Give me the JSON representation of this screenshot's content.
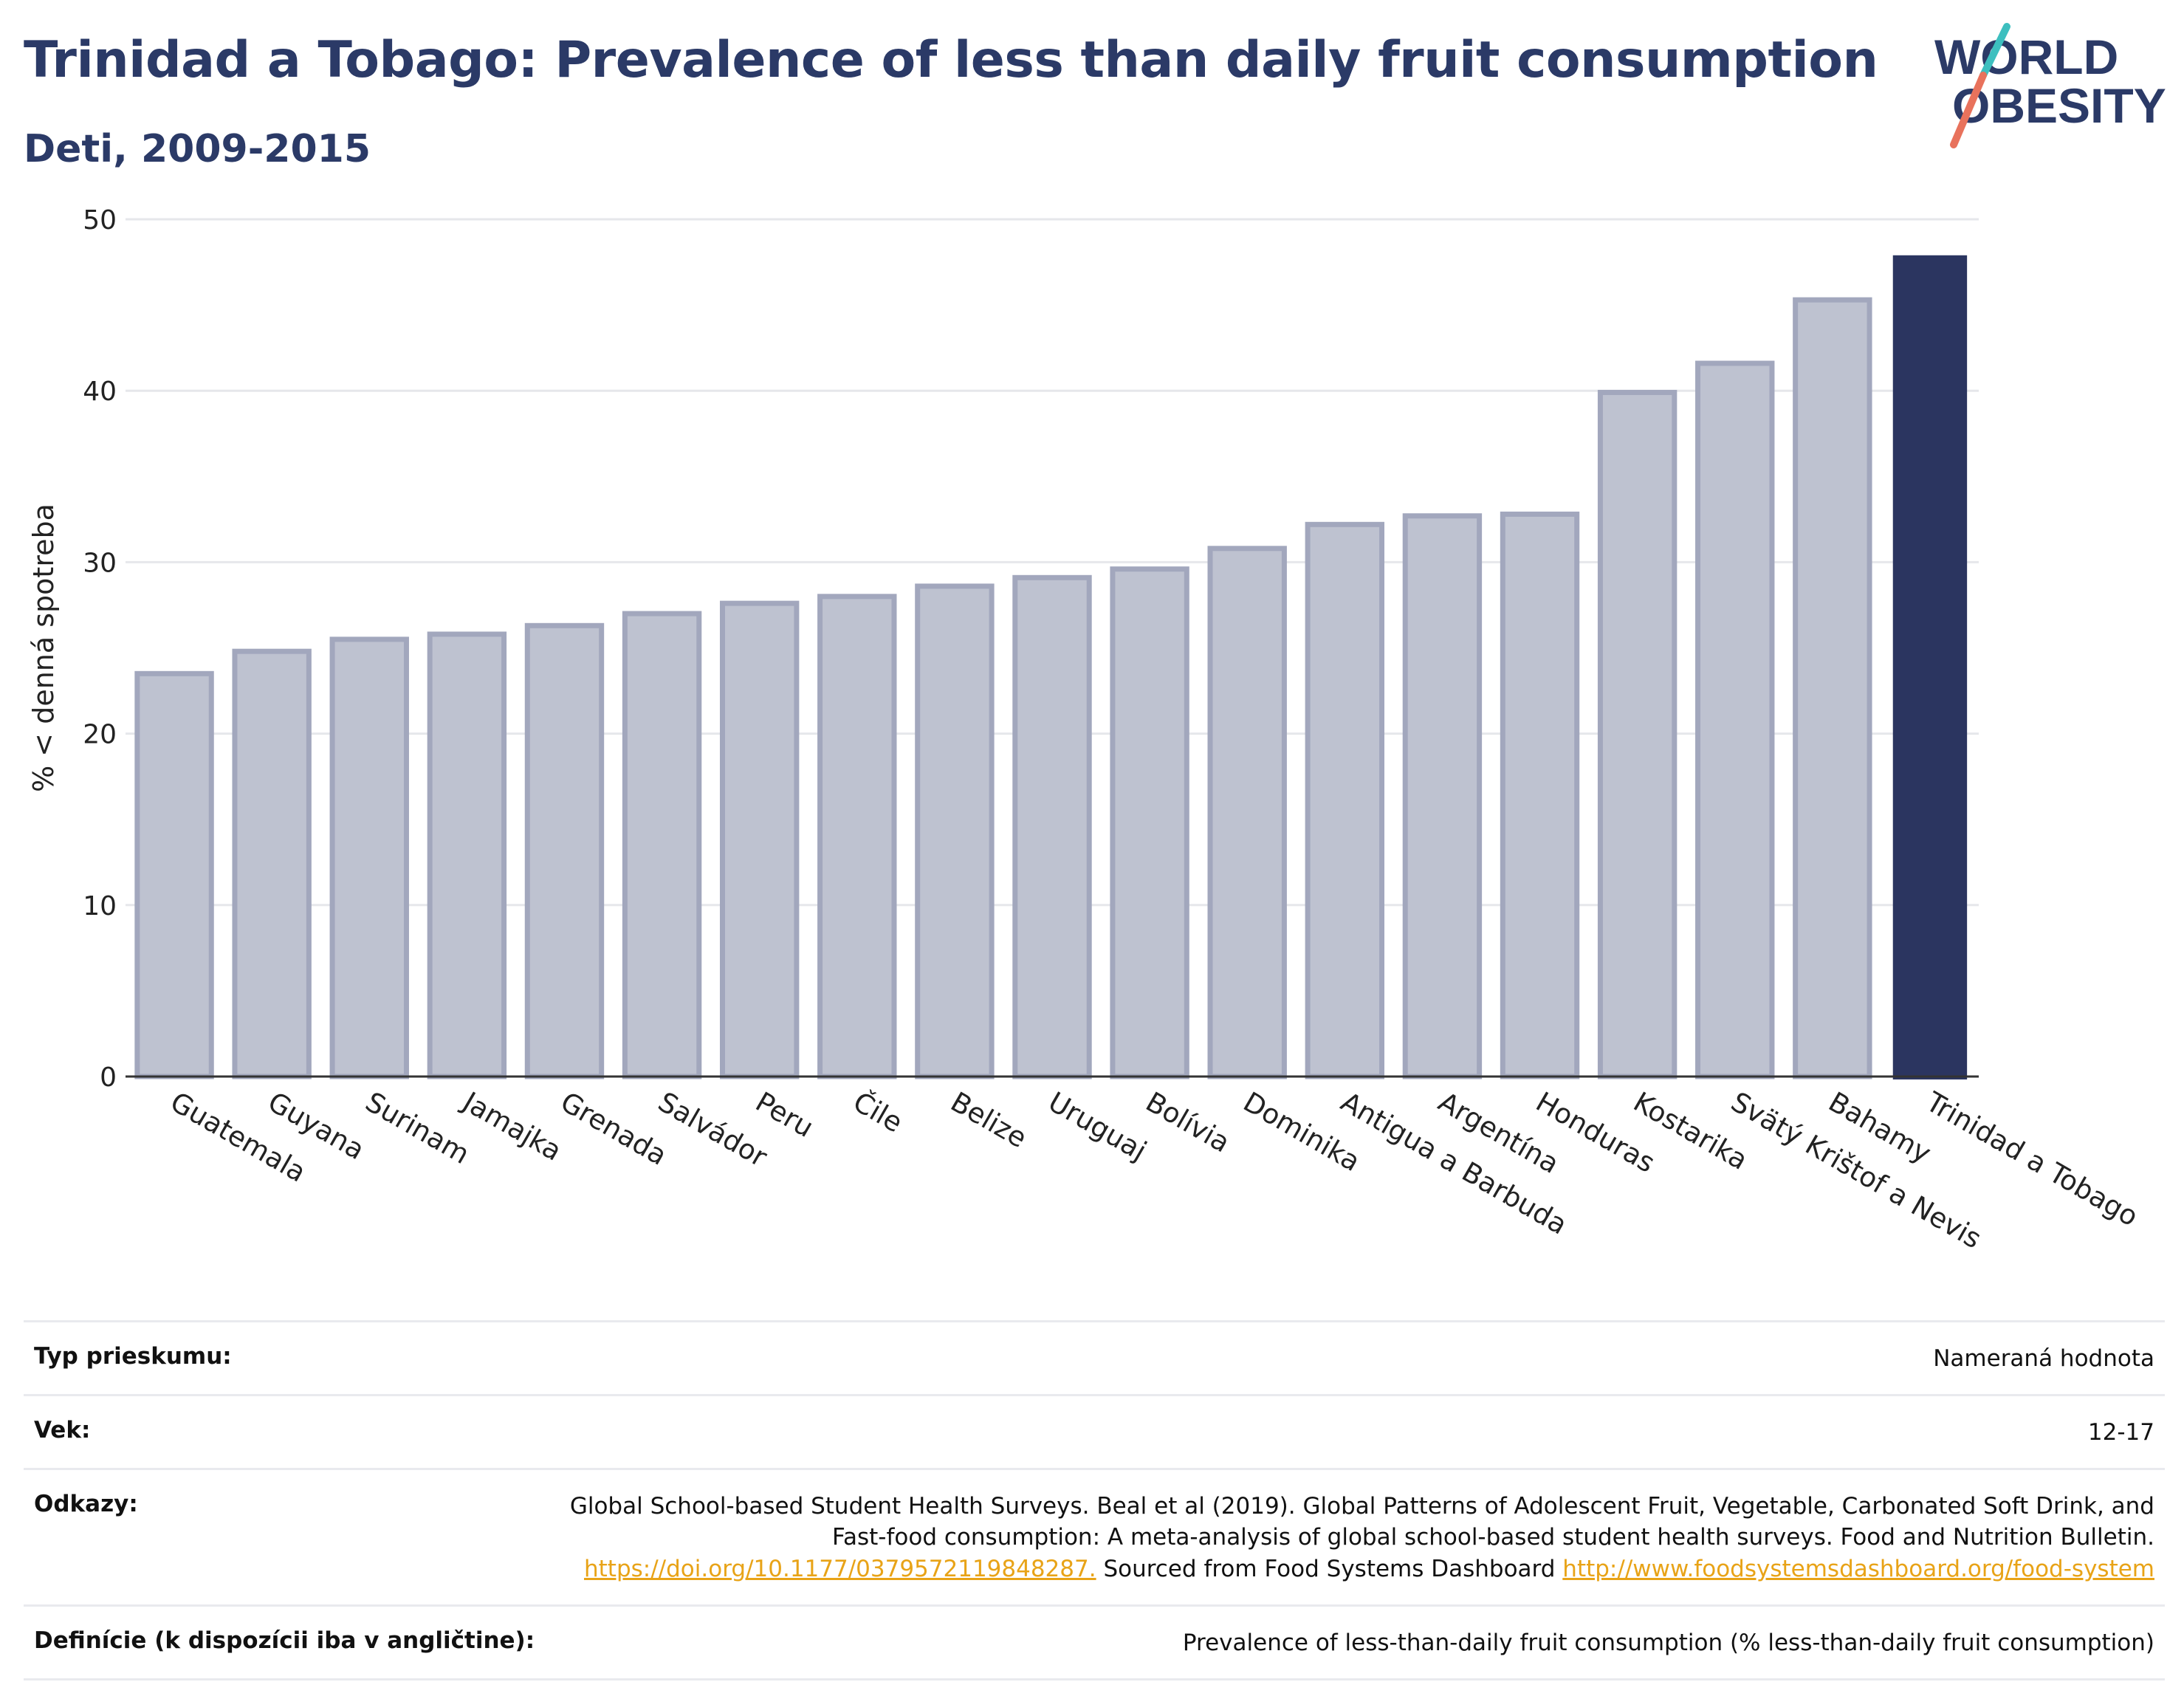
{
  "header": {
    "title": "Trinidad a Tobago: Prevalence of less than daily fruit consumption",
    "subtitle": "Deti, 2009-2015"
  },
  "logo": {
    "line1": "WORLD",
    "line2": "OBESITY"
  },
  "colors": {
    "title": "#2b3a67",
    "highlight_bar": "#2b3560",
    "other_bar": "#bec2d0",
    "other_bar_stroke": "#a2a7bd",
    "link": "#e8a317"
  },
  "chart_data": {
    "type": "bar",
    "title": "Trinidad a Tobago: Prevalence of less than daily fruit consumption",
    "subtitle": "Deti, 2009-2015",
    "xlabel": "",
    "ylabel": "% < denná spotreba",
    "ylim": [
      0,
      50
    ],
    "yticks": [
      0,
      10,
      20,
      30,
      40,
      50
    ],
    "grid": true,
    "highlight": "Trinidad a Tobago",
    "categories": [
      "Guatemala",
      "Guyana",
      "Surinam",
      "Jamajka",
      "Grenada",
      "Salvádor",
      "Peru",
      "Čile",
      "Belize",
      "Uruguaj",
      "Bolívia",
      "Dominika",
      "Antigua a Barbuda",
      "Argentína",
      "Honduras",
      "Kostarika",
      "Svätý Krištof a Nevis",
      "Bahamy",
      "Trinidad a Tobago"
    ],
    "values": [
      23.5,
      24.8,
      25.5,
      25.8,
      26.3,
      27.0,
      27.6,
      28.0,
      28.6,
      29.1,
      29.6,
      30.8,
      32.2,
      32.7,
      32.8,
      39.9,
      41.6,
      45.3,
      47.9
    ]
  },
  "meta": {
    "survey_type_label": "Typ prieskumu:",
    "survey_type_value": "Nameraná hodnota",
    "age_label": "Vek:",
    "age_value": "12-17",
    "refs_label": "Odkazy:",
    "refs_text1": "Global School-based Student Health Surveys. Beal et al (2019). Global Patterns of Adolescent Fruit, Vegetable, Carbonated Soft Drink, and Fast-food consumption: A meta-analysis of global school-based student health surveys. Food and Nutrition Bulletin.",
    "refs_link1": "https://doi.org/10.1177/0379572119848287.",
    "refs_text2": "Sourced from Food Systems Dashboard",
    "refs_link2": "http://www.foodsystemsdashboard.org/food-system",
    "def_label": "Definície (k dispozícii iba v angličtine):",
    "def_value": "Prevalence of less-than-daily fruit consumption (% less-than-daily fruit consumption)"
  }
}
